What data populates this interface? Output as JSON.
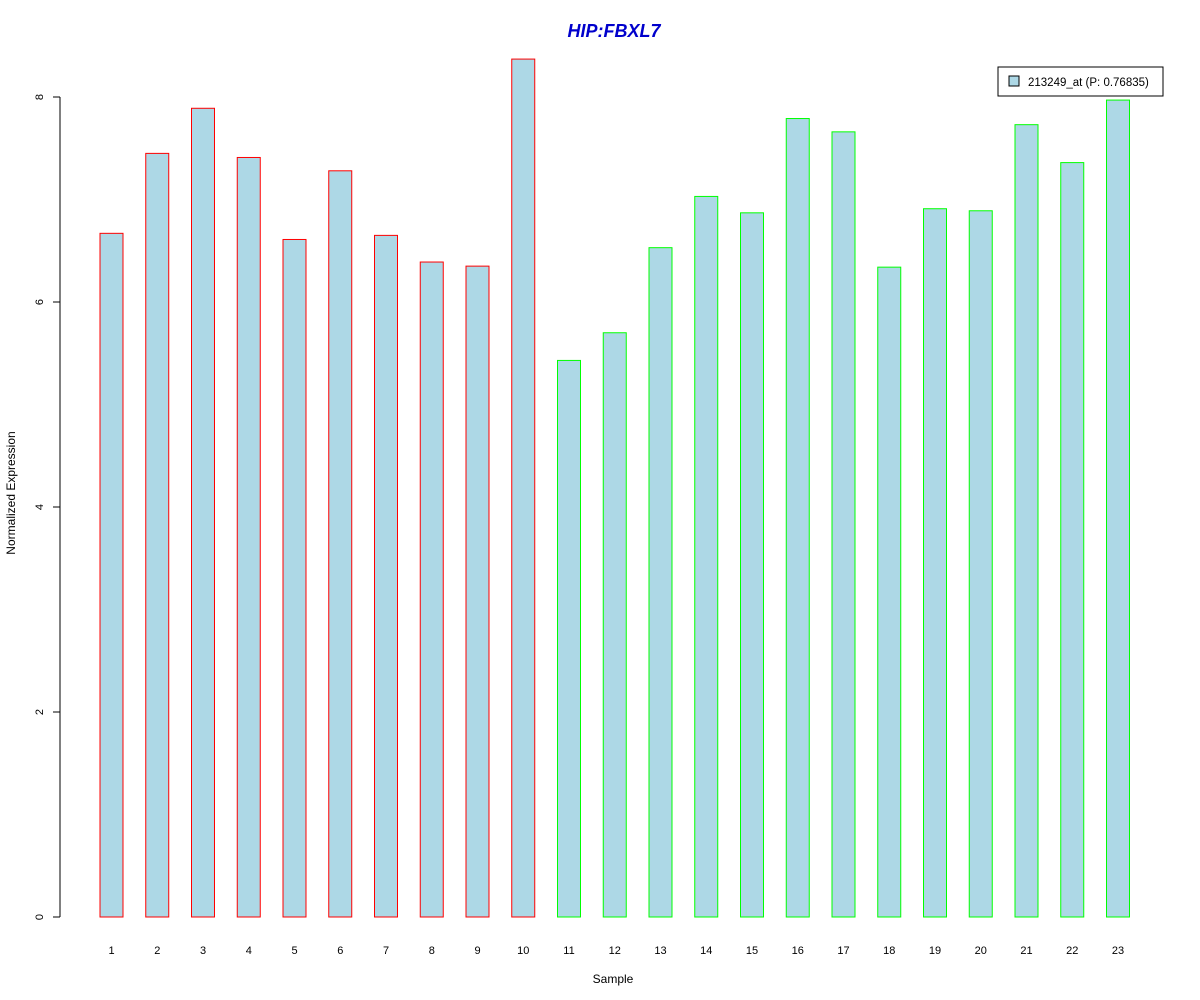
{
  "chart_data": {
    "type": "bar",
    "title": "HIP:FBXL7",
    "xlabel": "Sample",
    "ylabel": "Normalized Expression",
    "ylim": [
      0,
      8.4
    ],
    "yticks": [
      0,
      2,
      4,
      6,
      8
    ],
    "categories": [
      "1",
      "2",
      "3",
      "4",
      "5",
      "6",
      "7",
      "8",
      "9",
      "10",
      "11",
      "12",
      "13",
      "14",
      "15",
      "16",
      "17",
      "18",
      "19",
      "20",
      "21",
      "22",
      "23"
    ],
    "series": [
      {
        "name": "213249_at (P: 0.76835)",
        "values": [
          6.67,
          7.45,
          7.89,
          7.41,
          6.61,
          7.28,
          6.65,
          6.39,
          6.35,
          8.37,
          5.43,
          5.7,
          6.53,
          7.03,
          6.87,
          7.79,
          7.66,
          6.34,
          6.91,
          6.89,
          7.73,
          7.36,
          7.97
        ]
      }
    ],
    "group_of_sample": [
      1,
      1,
      1,
      1,
      1,
      1,
      1,
      1,
      1,
      1,
      2,
      2,
      2,
      2,
      2,
      2,
      2,
      2,
      2,
      2,
      2,
      2,
      2
    ],
    "grid": false,
    "legend_position": "top-right"
  },
  "colors": {
    "title": "#0000cc",
    "bar_fill": "#add8e6",
    "group1_border": "#ff0000",
    "group2_border": "#00ff00",
    "axis": "#000000"
  },
  "legend": {
    "label": "213249_at (P: 0.76835)"
  }
}
